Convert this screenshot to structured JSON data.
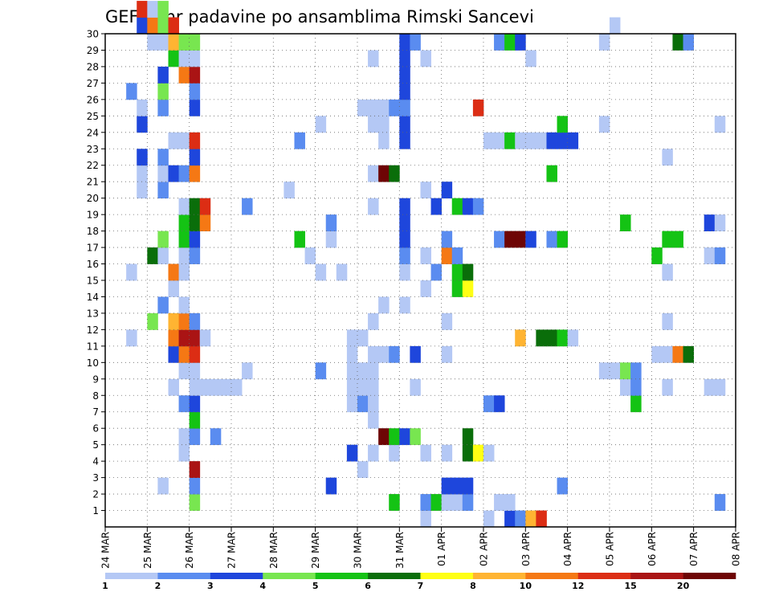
{
  "chart_data": {
    "type": "heatmap",
    "title": "GEFS 6hr padavine po ansamblima Rimski Sancevi",
    "x_start": "24 MAR 00h",
    "x_step_hours": 6,
    "x_labels": [
      "24 MAR",
      "25 MAR",
      "26 MAR",
      "27 MAR",
      "28 MAR",
      "29 MAR",
      "30 MAR",
      "31 MAR",
      "01 APR",
      "02 APR",
      "03 APR",
      "04 APR",
      "05 APR",
      "06 APR",
      "07 APR",
      "08 APR"
    ],
    "y_labels": [
      "1",
      "2",
      "3",
      "4",
      "5",
      "6",
      "7",
      "8",
      "9",
      "10",
      "11",
      "12",
      "13",
      "14",
      "15",
      "16",
      "17",
      "18",
      "19",
      "20",
      "21",
      "22",
      "23",
      "24",
      "25",
      "26",
      "27",
      "28",
      "29",
      "30"
    ],
    "grid": true,
    "colorbar": {
      "placement": "bottom",
      "labels": [
        "1",
        "2",
        "3",
        "4",
        "5",
        "6",
        "7",
        "8",
        "10",
        "12",
        "15",
        "20"
      ],
      "colors": [
        "#b4c8f5",
        "#5a8cf0",
        "#1e46dc",
        "#78e650",
        "#14c314",
        "#0a6e0a",
        "#ffff14",
        "#ffb432",
        "#f57814",
        "#dc2d14",
        "#aa1414",
        "#6e0505"
      ]
    },
    "cells": [
      [
        2,
        11,
        1
      ],
      [
        2,
        15,
        1
      ],
      [
        2,
        26,
        2
      ],
      [
        2,
        40,
        1
      ],
      [
        3,
        20,
        1
      ],
      [
        3,
        21,
        1
      ],
      [
        3,
        22,
        3
      ],
      [
        3,
        24,
        3
      ],
      [
        3,
        25,
        1
      ],
      [
        3,
        30,
        3
      ],
      [
        3,
        31,
        10
      ],
      [
        4,
        12,
        4
      ],
      [
        4,
        16,
        6
      ],
      [
        4,
        29,
        1
      ],
      [
        4,
        30,
        9
      ],
      [
        4,
        31,
        1
      ],
      [
        5,
        2,
        1
      ],
      [
        5,
        13,
        2
      ],
      [
        5,
        16,
        1
      ],
      [
        5,
        17,
        4
      ],
      [
        5,
        20,
        2
      ],
      [
        5,
        21,
        1
      ],
      [
        5,
        22,
        2
      ],
      [
        5,
        25,
        2
      ],
      [
        5,
        26,
        4
      ],
      [
        5,
        27,
        3
      ],
      [
        5,
        29,
        1
      ],
      [
        5,
        30,
        4
      ],
      [
        5,
        31,
        4
      ],
      [
        6,
        8,
        1
      ],
      [
        6,
        10,
        3
      ],
      [
        6,
        11,
        9
      ],
      [
        6,
        12,
        8
      ],
      [
        6,
        14,
        1
      ],
      [
        6,
        15,
        9
      ],
      [
        6,
        21,
        3
      ],
      [
        6,
        23,
        1
      ],
      [
        6,
        28,
        5
      ],
      [
        6,
        29,
        8
      ],
      [
        6,
        30,
        10
      ],
      [
        7,
        4,
        1
      ],
      [
        7,
        5,
        1
      ],
      [
        7,
        7,
        2
      ],
      [
        7,
        9,
        1
      ],
      [
        7,
        10,
        9
      ],
      [
        7,
        11,
        11
      ],
      [
        7,
        12,
        9
      ],
      [
        7,
        13,
        1
      ],
      [
        7,
        15,
        1
      ],
      [
        7,
        16,
        1
      ],
      [
        7,
        17,
        5
      ],
      [
        7,
        18,
        5
      ],
      [
        7,
        19,
        1
      ],
      [
        7,
        21,
        2
      ],
      [
        7,
        23,
        1
      ],
      [
        7,
        27,
        9
      ],
      [
        7,
        28,
        1
      ],
      [
        7,
        29,
        4
      ],
      [
        8,
        1,
        4
      ],
      [
        8,
        2,
        2
      ],
      [
        8,
        3,
        11
      ],
      [
        8,
        5,
        2
      ],
      [
        8,
        6,
        5
      ],
      [
        8,
        7,
        3
      ],
      [
        8,
        8,
        1
      ],
      [
        8,
        9,
        1
      ],
      [
        8,
        10,
        10
      ],
      [
        8,
        11,
        11
      ],
      [
        8,
        12,
        2
      ],
      [
        8,
        16,
        2
      ],
      [
        8,
        17,
        3
      ],
      [
        8,
        18,
        6
      ],
      [
        8,
        19,
        6
      ],
      [
        8,
        21,
        9
      ],
      [
        8,
        22,
        3
      ],
      [
        8,
        23,
        10
      ],
      [
        8,
        25,
        3
      ],
      [
        8,
        26,
        2
      ],
      [
        8,
        27,
        11
      ],
      [
        8,
        28,
        1
      ],
      [
        8,
        29,
        4
      ],
      [
        9,
        8,
        1
      ],
      [
        9,
        11,
        1
      ],
      [
        9,
        18,
        9
      ],
      [
        9,
        19,
        10
      ],
      [
        10,
        5,
        2
      ],
      [
        10,
        8,
        1
      ],
      [
        11,
        8,
        1
      ],
      [
        12,
        8,
        1
      ],
      [
        13,
        9,
        1
      ],
      [
        13,
        19,
        2
      ],
      [
        17,
        20,
        1
      ],
      [
        18,
        17,
        5
      ],
      [
        18,
        23,
        2
      ],
      [
        19,
        16,
        1
      ],
      [
        20,
        9,
        2
      ],
      [
        20,
        15,
        1
      ],
      [
        20,
        24,
        1
      ],
      [
        21,
        2,
        3
      ],
      [
        21,
        17,
        1
      ],
      [
        21,
        18,
        2
      ],
      [
        22,
        15,
        1
      ],
      [
        23,
        4,
        3
      ],
      [
        23,
        7,
        1
      ],
      [
        23,
        8,
        1
      ],
      [
        23,
        9,
        1
      ],
      [
        23,
        10,
        1
      ],
      [
        23,
        11,
        1
      ],
      [
        24,
        3,
        1
      ],
      [
        24,
        7,
        2
      ],
      [
        24,
        8,
        1
      ],
      [
        24,
        9,
        1
      ],
      [
        24,
        11,
        1
      ],
      [
        24,
        25,
        1
      ],
      [
        25,
        4,
        1
      ],
      [
        25,
        6,
        1
      ],
      [
        25,
        7,
        1
      ],
      [
        25,
        8,
        1
      ],
      [
        25,
        9,
        1
      ],
      [
        25,
        10,
        1
      ],
      [
        25,
        12,
        1
      ],
      [
        25,
        19,
        1
      ],
      [
        25,
        21,
        1
      ],
      [
        25,
        24,
        1
      ],
      [
        25,
        25,
        1
      ],
      [
        25,
        28,
        1
      ],
      [
        26,
        5,
        12
      ],
      [
        26,
        10,
        1
      ],
      [
        26,
        13,
        1
      ],
      [
        26,
        21,
        12
      ],
      [
        26,
        23,
        1
      ],
      [
        26,
        24,
        1
      ],
      [
        26,
        25,
        1
      ],
      [
        27,
        1,
        5
      ],
      [
        27,
        4,
        1
      ],
      [
        27,
        5,
        5
      ],
      [
        27,
        10,
        2
      ],
      [
        27,
        21,
        6
      ],
      [
        27,
        25,
        2
      ],
      [
        28,
        5,
        3
      ],
      [
        28,
        13,
        1
      ],
      [
        28,
        15,
        1
      ],
      [
        28,
        16,
        2
      ],
      [
        28,
        17,
        3
      ],
      [
        28,
        18,
        3
      ],
      [
        28,
        19,
        3
      ],
      [
        28,
        23,
        3
      ],
      [
        28,
        24,
        3
      ],
      [
        28,
        25,
        2
      ],
      [
        28,
        26,
        3
      ],
      [
        28,
        27,
        3
      ],
      [
        28,
        28,
        3
      ],
      [
        28,
        29,
        3
      ],
      [
        29,
        5,
        4
      ],
      [
        29,
        8,
        1
      ],
      [
        29,
        10,
        3
      ],
      [
        29,
        29,
        2
      ],
      [
        30,
        0,
        1
      ],
      [
        30,
        1,
        2
      ],
      [
        30,
        4,
        1
      ],
      [
        30,
        14,
        1
      ],
      [
        30,
        16,
        1
      ],
      [
        30,
        20,
        1
      ],
      [
        30,
        28,
        1
      ],
      [
        31,
        1,
        5
      ],
      [
        31,
        15,
        2
      ],
      [
        31,
        19,
        3
      ],
      [
        32,
        1,
        1
      ],
      [
        32,
        2,
        3
      ],
      [
        32,
        4,
        1
      ],
      [
        32,
        10,
        1
      ],
      [
        32,
        12,
        1
      ],
      [
        32,
        16,
        9
      ],
      [
        32,
        17,
        2
      ],
      [
        32,
        20,
        3
      ],
      [
        33,
        1,
        1
      ],
      [
        33,
        2,
        3
      ],
      [
        33,
        14,
        5
      ],
      [
        33,
        15,
        5
      ],
      [
        33,
        16,
        2
      ],
      [
        33,
        19,
        5
      ],
      [
        34,
        1,
        2
      ],
      [
        34,
        2,
        3
      ],
      [
        34,
        4,
        6
      ],
      [
        34,
        5,
        6
      ],
      [
        34,
        14,
        7
      ],
      [
        34,
        15,
        6
      ],
      [
        34,
        19,
        3
      ],
      [
        35,
        4,
        7
      ],
      [
        35,
        19,
        2
      ],
      [
        35,
        25,
        10
      ],
      [
        36,
        0,
        1
      ],
      [
        36,
        4,
        1
      ],
      [
        36,
        7,
        2
      ],
      [
        36,
        23,
        1
      ],
      [
        37,
        1,
        1
      ],
      [
        37,
        7,
        3
      ],
      [
        37,
        17,
        2
      ],
      [
        37,
        23,
        1
      ],
      [
        37,
        29,
        2
      ],
      [
        38,
        0,
        3
      ],
      [
        38,
        1,
        1
      ],
      [
        38,
        17,
        12
      ],
      [
        38,
        23,
        5
      ],
      [
        38,
        29,
        5
      ],
      [
        39,
        0,
        2
      ],
      [
        39,
        11,
        8
      ],
      [
        39,
        17,
        12
      ],
      [
        39,
        23,
        1
      ],
      [
        39,
        29,
        3
      ],
      [
        40,
        0,
        8
      ],
      [
        40,
        17,
        3
      ],
      [
        40,
        23,
        1
      ],
      [
        40,
        28,
        1
      ],
      [
        41,
        0,
        10
      ],
      [
        41,
        11,
        6
      ],
      [
        41,
        23,
        1
      ],
      [
        42,
        11,
        6
      ],
      [
        42,
        17,
        2
      ],
      [
        42,
        21,
        5
      ],
      [
        42,
        23,
        3
      ],
      [
        43,
        2,
        2
      ],
      [
        43,
        11,
        5
      ],
      [
        43,
        17,
        5
      ],
      [
        43,
        23,
        3
      ],
      [
        43,
        24,
        5
      ],
      [
        44,
        11,
        1
      ],
      [
        44,
        23,
        3
      ],
      [
        47,
        9,
        1
      ],
      [
        47,
        24,
        1
      ],
      [
        47,
        29,
        1
      ],
      [
        48,
        9,
        1
      ],
      [
        48,
        30,
        1
      ],
      [
        49,
        8,
        1
      ],
      [
        49,
        9,
        4
      ],
      [
        49,
        18,
        5
      ],
      [
        50,
        7,
        5
      ],
      [
        50,
        8,
        2
      ],
      [
        50,
        9,
        2
      ],
      [
        52,
        10,
        1
      ],
      [
        52,
        16,
        5
      ],
      [
        53,
        8,
        1
      ],
      [
        53,
        10,
        1
      ],
      [
        53,
        12,
        1
      ],
      [
        53,
        15,
        1
      ],
      [
        53,
        17,
        5
      ],
      [
        53,
        22,
        1
      ],
      [
        54,
        10,
        9
      ],
      [
        54,
        17,
        5
      ],
      [
        54,
        29,
        6
      ],
      [
        55,
        10,
        6
      ],
      [
        55,
        29,
        2
      ],
      [
        57,
        8,
        1
      ],
      [
        57,
        16,
        1
      ],
      [
        57,
        18,
        3
      ],
      [
        58,
        1,
        2
      ],
      [
        58,
        8,
        1
      ],
      [
        58,
        16,
        2
      ],
      [
        58,
        18,
        1
      ],
      [
        58,
        24,
        1
      ]
    ]
  }
}
